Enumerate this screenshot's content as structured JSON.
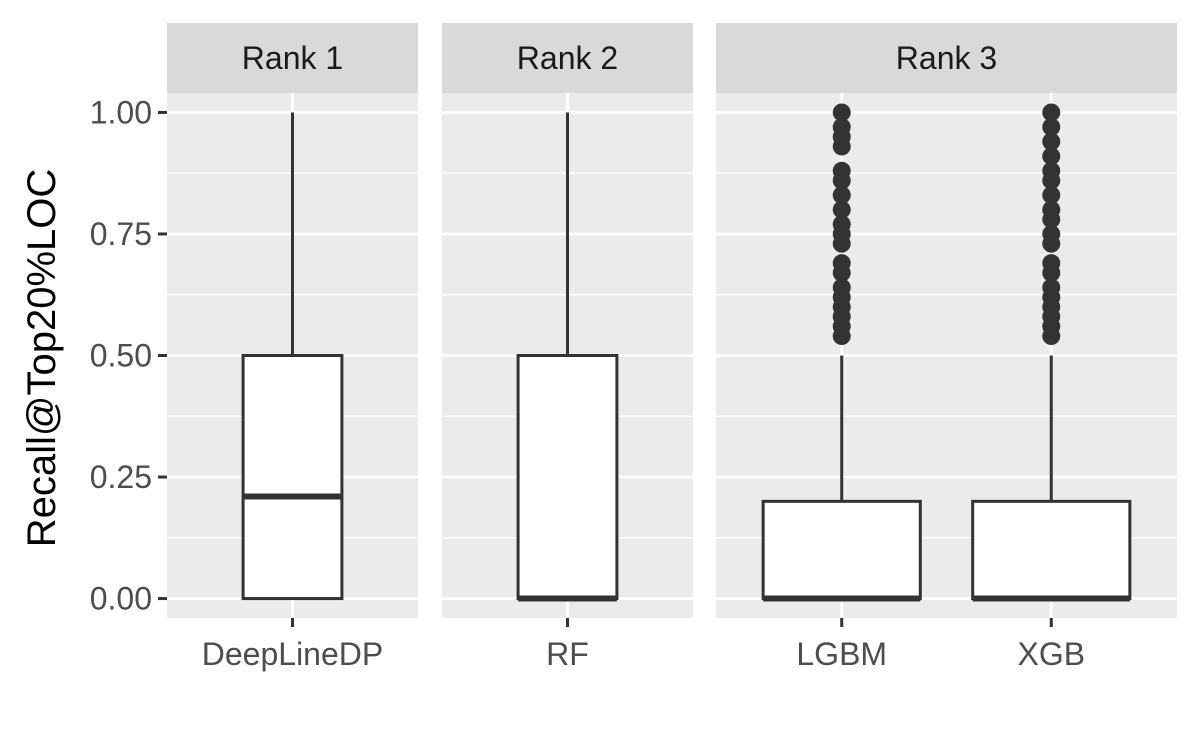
{
  "chart_data": {
    "type": "box",
    "ylabel": "Recall@Top20%LOC",
    "xlabel": "",
    "ylim": [
      -0.04,
      1.04
    ],
    "y_ticks": [
      "0.00",
      "0.25",
      "0.50",
      "0.75",
      "1.00"
    ],
    "grid": true,
    "facets": [
      {
        "label": "Rank 1",
        "boxes": [
          {
            "category": "DeepLineDP",
            "min": 0.0,
            "q1": 0.0,
            "median": 0.21,
            "q3": 0.5,
            "max": 1.0,
            "outliers": []
          }
        ]
      },
      {
        "label": "Rank 2",
        "boxes": [
          {
            "category": "RF",
            "min": 0.0,
            "q1": 0.0,
            "median": 0.0,
            "q3": 0.5,
            "max": 1.0,
            "outliers": []
          }
        ]
      },
      {
        "label": "Rank 3",
        "boxes": [
          {
            "category": "LGBM",
            "min": 0.0,
            "q1": 0.0,
            "median": 0.0,
            "q3": 0.2,
            "max": 0.5,
            "outliers": [
              0.54,
              0.56,
              0.58,
              0.6,
              0.62,
              0.64,
              0.67,
              0.69,
              0.73,
              0.75,
              0.77,
              0.8,
              0.83,
              0.86,
              0.88,
              0.93,
              0.95,
              0.97,
              1.0
            ]
          },
          {
            "category": "XGB",
            "min": 0.0,
            "q1": 0.0,
            "median": 0.0,
            "q3": 0.2,
            "max": 0.5,
            "outliers": [
              0.54,
              0.56,
              0.58,
              0.6,
              0.62,
              0.64,
              0.67,
              0.69,
              0.73,
              0.75,
              0.78,
              0.8,
              0.83,
              0.86,
              0.88,
              0.91,
              0.94,
              0.97,
              1.0
            ]
          }
        ]
      }
    ]
  }
}
